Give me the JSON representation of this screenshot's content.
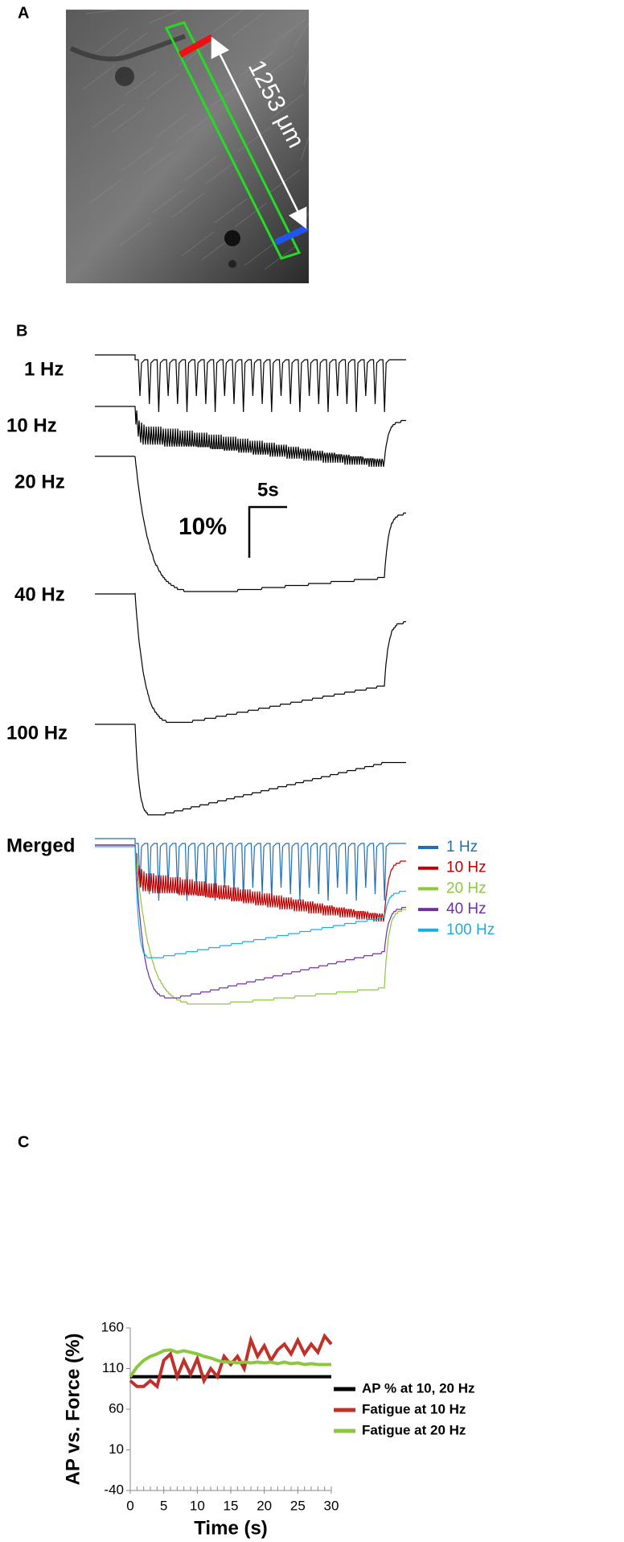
{
  "panel_a": {
    "label": "A",
    "scale_text": "1253 μm"
  },
  "panel_b": {
    "label": "B",
    "traces": [
      "1 Hz",
      "10 Hz",
      "20 Hz",
      "40 Hz",
      "100 Hz"
    ],
    "scale_time": "5s",
    "scale_amplitude": "10%",
    "merged_label": "Merged",
    "legend": [
      {
        "name": "1 Hz",
        "color": "#1f6fb5"
      },
      {
        "name": "10 Hz",
        "color": "#c00000"
      },
      {
        "name": "20 Hz",
        "color": "#8dc63f"
      },
      {
        "name": "40 Hz",
        "color": "#7030a0"
      },
      {
        "name": "100 Hz",
        "color": "#22aadd"
      }
    ]
  },
  "chart_data": {
    "type": "line",
    "panel_label": "C",
    "x_label": "Time (s)",
    "y_label": "AP vs. Force (%)",
    "xlim": [
      0,
      30
    ],
    "xticks": [
      0,
      5,
      10,
      15,
      20,
      25,
      30
    ],
    "ylim": [
      -40,
      160
    ],
    "yticks": [
      -40,
      10,
      60,
      110,
      160
    ],
    "grid": false,
    "legend": "right",
    "series": [
      {
        "name": "AP % at 10, 20 Hz",
        "color": "#000000",
        "x": [
          0,
          30
        ],
        "values": [
          100,
          100
        ]
      },
      {
        "name": "Fatigue at 10 Hz",
        "color": "#c0312b",
        "x": [
          0,
          1,
          2,
          3,
          4,
          5,
          6,
          7,
          8,
          9,
          10,
          11,
          12,
          13,
          14,
          15,
          16,
          17,
          18,
          19,
          20,
          21,
          22,
          23,
          24,
          25,
          26,
          27,
          28,
          29,
          30
        ],
        "values": [
          95,
          88,
          88,
          95,
          88,
          120,
          128,
          100,
          120,
          103,
          122,
          95,
          110,
          100,
          125,
          115,
          125,
          110,
          145,
          125,
          138,
          120,
          133,
          140,
          128,
          145,
          128,
          140,
          130,
          150,
          140
        ]
      },
      {
        "name": "Fatigue at 20 Hz",
        "color": "#8dc63f",
        "x": [
          0,
          1,
          2,
          3,
          4,
          5,
          6,
          7,
          8,
          9,
          10,
          11,
          12,
          13,
          14,
          15,
          16,
          17,
          18,
          19,
          20,
          21,
          22,
          23,
          24,
          25,
          26,
          27,
          28,
          29,
          30
        ],
        "values": [
          100,
          112,
          120,
          125,
          128,
          132,
          133,
          130,
          132,
          130,
          128,
          125,
          123,
          120,
          118,
          118,
          117,
          118,
          117,
          118,
          117,
          118,
          116,
          118,
          116,
          117,
          115,
          116,
          115,
          115,
          115
        ]
      }
    ]
  }
}
